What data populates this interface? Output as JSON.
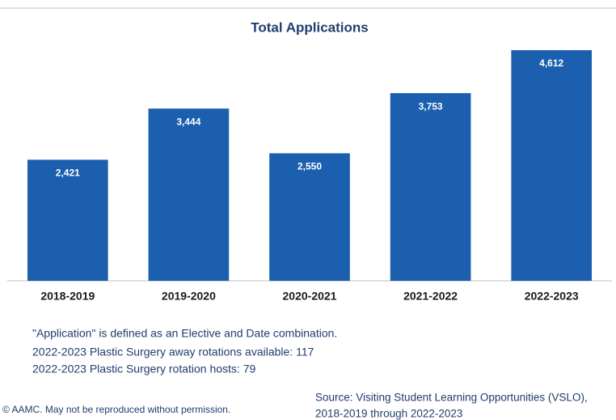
{
  "chart_data": {
    "type": "bar",
    "title": "Total Applications",
    "categories": [
      "2018-2019",
      "2019-2020",
      "2020-2021",
      "2021-2022",
      "2022-2023"
    ],
    "values": [
      2421,
      3444,
      2550,
      3753,
      4612
    ],
    "value_labels": [
      "2,421",
      "3,444",
      "2,550",
      "3,753",
      "4,612"
    ],
    "color": "#1b5fae",
    "notes": [
      "\"Application\" is defined as an Elective and Date combination.",
      "2022-2023 Plastic Surgery away rotations available: 117",
      "2022-2023 Plastic Surgery rotation hosts: 79"
    ],
    "copyright": "© AAMC. May not be reproduced without permission.",
    "source": [
      "Source: Visiting Student Learning Opportunities (VSLO),",
      "2018-2019 through 2022-2023"
    ]
  }
}
